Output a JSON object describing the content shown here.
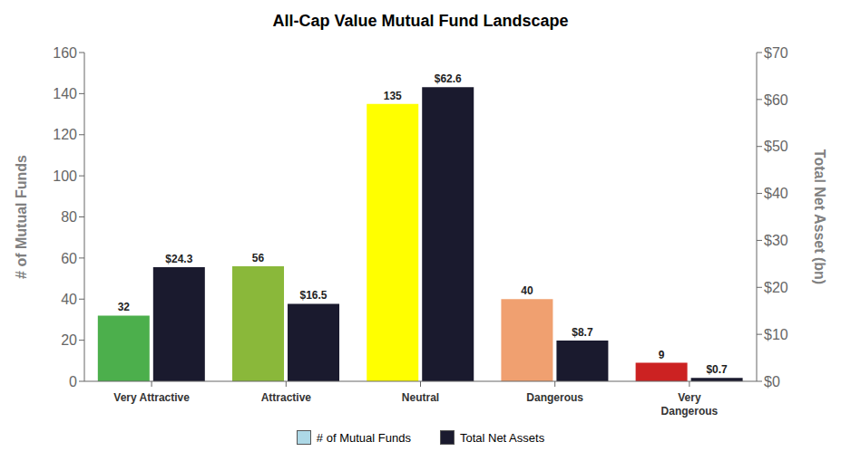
{
  "chart_data": {
    "type": "bar",
    "title": "All-Cap Value Mutual Fund Landscape",
    "categories": [
      "Very Attractive",
      "Attractive",
      "Neutral",
      "Dangerous",
      "Very\nDangerous"
    ],
    "series": [
      {
        "name": "# of Mutual Funds",
        "color": "#add8e6",
        "colors": [
          "#4caf4c",
          "#8ab83a",
          "#ffff00",
          "#f0a070",
          "#cc2222"
        ],
        "values": [
          32,
          56,
          135,
          40,
          9
        ]
      },
      {
        "name": "Total Net Assets",
        "color": "#1a1a2e",
        "axis": "y2",
        "values": [
          24.3,
          16.5,
          62.6,
          8.7,
          0.7
        ],
        "value_labels": [
          "$24.3",
          "$16.5",
          "$62.6",
          "$8.7",
          "$0.7"
        ]
      }
    ],
    "ylabel": "# of Mutual Funds",
    "y2label": "Total Net Asset (bn)",
    "ylim": [
      0,
      160
    ],
    "yticks": [
      0,
      20,
      40,
      60,
      80,
      100,
      120,
      140,
      160
    ],
    "y2lim": [
      0,
      70
    ],
    "y2ticks": [
      {
        "value": 0,
        "label": "$0"
      },
      {
        "value": 10,
        "label": "$10"
      },
      {
        "value": 20,
        "label": "$20"
      },
      {
        "value": 30,
        "label": "$30"
      },
      {
        "value": 40,
        "label": "$40"
      },
      {
        "value": 50,
        "label": "$50"
      },
      {
        "value": 60,
        "label": "$60"
      },
      {
        "value": 70,
        "label": "$70"
      }
    ],
    "grid": false,
    "legend": "bottom",
    "data_labels": true
  }
}
